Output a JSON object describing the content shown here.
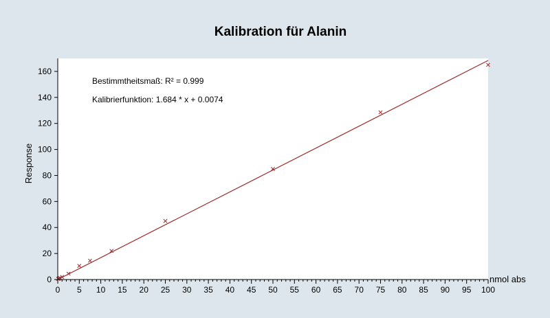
{
  "colors": {
    "background": "#dde6ec",
    "plot_area": "#ffffff",
    "series": "#9e2a2a",
    "axis": "#000000"
  },
  "chart_data": {
    "type": "scatter",
    "title": "Kalibration für Alanin",
    "xlabel": "nmol abs",
    "ylabel": "Response",
    "xlim": [
      0,
      100
    ],
    "ylim": [
      0,
      170
    ],
    "x_ticks": [
      0,
      5,
      10,
      15,
      20,
      25,
      30,
      35,
      40,
      45,
      50,
      55,
      60,
      65,
      70,
      75,
      80,
      85,
      90,
      95,
      100
    ],
    "y_ticks": [
      0,
      20,
      40,
      60,
      80,
      100,
      120,
      140,
      160
    ],
    "grid": false,
    "annotations": [
      "Bestimmtheitsmaß: R² = 0.999",
      "Kalibrierfunktion: 1.684 * x + 0.0074"
    ],
    "series": [
      {
        "marker": "x",
        "x": [
          0.1,
          0.25,
          0.5,
          1,
          2.5,
          5,
          7.5,
          12.5,
          25,
          50,
          75,
          100
        ],
        "y": [
          0.5,
          0.8,
          1.2,
          2,
          4.5,
          10.5,
          14.5,
          22,
          45,
          85,
          128.5,
          165
        ]
      }
    ],
    "fit_line": {
      "slope": 1.684,
      "intercept": 0.0074,
      "x_range": [
        0,
        100
      ]
    }
  }
}
